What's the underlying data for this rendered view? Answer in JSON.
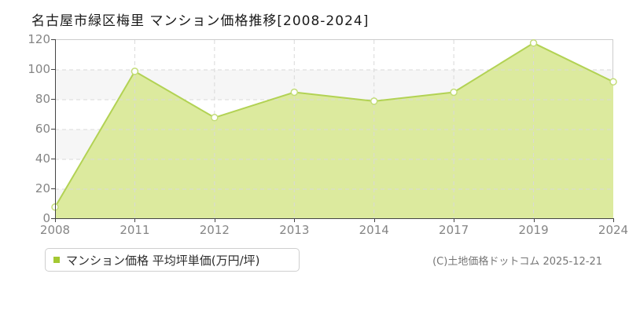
{
  "title": "名古屋市緑区梅里 マンション価格推移[2008-2024]",
  "legend": {
    "label": "マンション価格 平均坪単価(万円/坪)",
    "marker_color": "#a4c832"
  },
  "copyright": "(C)土地価格ドットコム 2025-12-21",
  "chart_data": {
    "type": "area",
    "title": "名古屋市緑区梅里 マンション価格推移[2008-2024]",
    "categories": [
      "2008",
      "2011",
      "2012",
      "2013",
      "2014",
      "2017",
      "2019",
      "2024"
    ],
    "series": [
      {
        "name": "マンション価格 平均坪単価(万円/坪)",
        "values": [
          8,
          99,
          68,
          85,
          79,
          85,
          118,
          92
        ]
      }
    ],
    "xlabel": "",
    "ylabel": "万円/坪",
    "ylim": [
      0,
      120
    ],
    "yticks": [
      0,
      20,
      40,
      60,
      80,
      100,
      120
    ],
    "grid": true,
    "legend_position": "bottom-left",
    "colors": {
      "line": "#b2d254",
      "fill": "#dcea9e",
      "marker_fill": "#ffffff",
      "marker_stroke": "#c3dc78",
      "gridline": "#d9d9d9",
      "band_gray": "#f6f6f6",
      "axis": "#444444"
    }
  }
}
